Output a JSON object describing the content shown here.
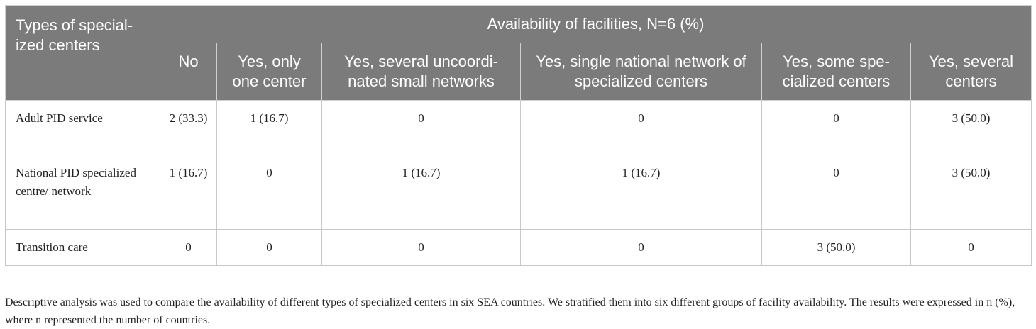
{
  "table": {
    "stub_header": "Types of special-ized centers",
    "group_header": "Availability of facilities, N=6 (%)",
    "columns": [
      "No",
      "Yes, only one center",
      "Yes, several uncoordi-nated small networks",
      "Yes, single national network of specialized centers",
      "Yes, some spe-cialized centers",
      "Yes, several centers"
    ],
    "rows": [
      {
        "label": "Adult PID service",
        "cells": [
          "2 (33.3)",
          "1 (16.7)",
          "0",
          "0",
          "0",
          "3 (50.0)"
        ]
      },
      {
        "label": "National PID specialized centre/ network",
        "cells": [
          "1 (16.7)",
          "0",
          "1 (16.7)",
          "1 (16.7)",
          "0",
          "3 (50.0)"
        ]
      },
      {
        "label": "Transition care",
        "cells": [
          "0",
          "0",
          "0",
          "0",
          "3 (50.0)",
          "0"
        ]
      }
    ]
  },
  "footnote": "Descriptive analysis was used to compare the availability of different types of specialized centers in six SEA countries. We stratified them into six different groups of facility availability. The results were expressed in n (%), where n represented the number of countries.",
  "colors": {
    "header_bg": "#7b7b7b",
    "header_text": "#ffffff",
    "border": "#c8c8c8"
  }
}
